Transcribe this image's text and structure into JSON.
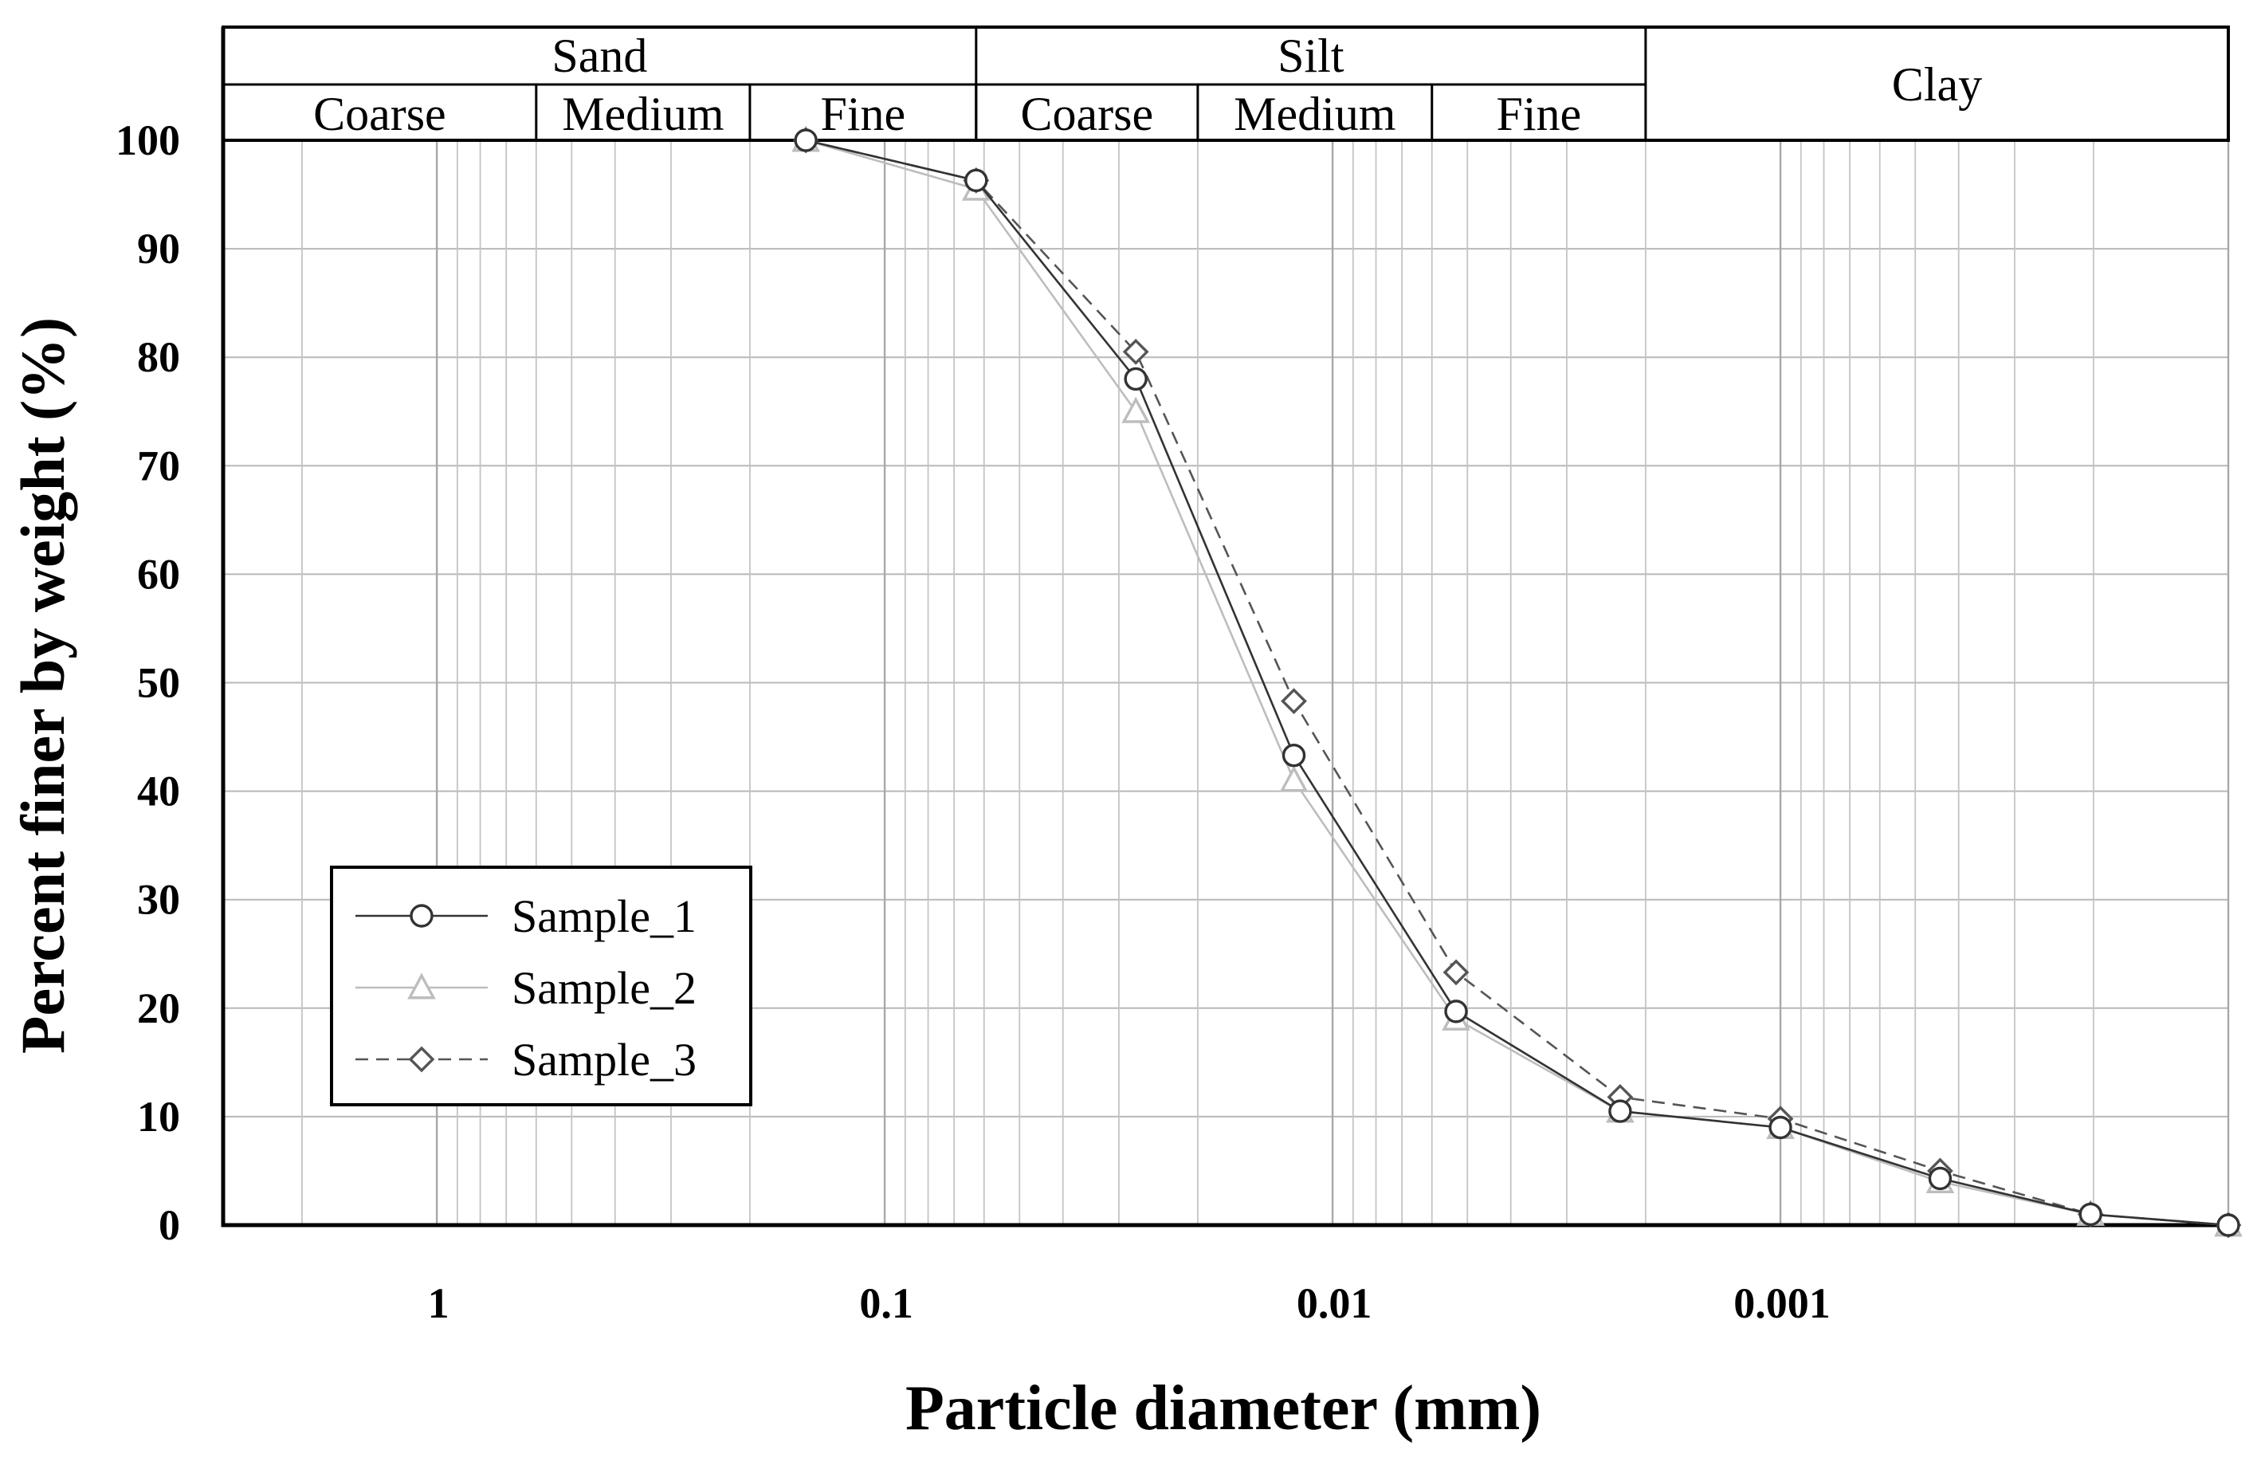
{
  "chart_data": {
    "type": "line",
    "xlabel": "Particle diameter (mm)",
    "ylabel": "Percent finer by weight (%)",
    "xscale": "log-reversed",
    "xlim": [
      3,
      0.0001
    ],
    "ylim": [
      0,
      100
    ],
    "yticks": [
      0,
      10,
      20,
      30,
      40,
      50,
      60,
      70,
      80,
      90,
      100
    ],
    "xticks": [
      {
        "value": 1,
        "label": "1"
      },
      {
        "value": 0.1,
        "label": "0.1"
      },
      {
        "value": 0.01,
        "label": "0.01"
      },
      {
        "value": 0.001,
        "label": "0.001"
      }
    ],
    "grid": true,
    "legend_position": "bottom-left",
    "classification": {
      "groups": [
        {
          "label": "Sand",
          "from": 3,
          "to": 0.0625
        },
        {
          "label": "Silt",
          "from": 0.0625,
          "to": 0.002
        },
        {
          "label": "Clay",
          "from": 0.002,
          "to": 0.0001
        }
      ],
      "subclasses": [
        {
          "label": "Coarse",
          "from": 3,
          "to": 0.6
        },
        {
          "label": "Medium",
          "from": 0.6,
          "to": 0.2
        },
        {
          "label": "Fine",
          "from": 0.2,
          "to": 0.0625
        },
        {
          "label": "Coarse",
          "from": 0.0625,
          "to": 0.02
        },
        {
          "label": "Medium",
          "from": 0.02,
          "to": 0.006
        },
        {
          "label": "Fine",
          "from": 0.006,
          "to": 0.002
        }
      ]
    },
    "series": [
      {
        "name": "Sample_1",
        "marker": "circle",
        "line": "solid",
        "color": "#333333",
        "points": [
          {
            "x": 0.15,
            "y": 100
          },
          {
            "x": 0.0625,
            "y": 96.3
          },
          {
            "x": 0.0275,
            "y": 78.0
          },
          {
            "x": 0.0122,
            "y": 43.3
          },
          {
            "x": 0.0053,
            "y": 19.7
          },
          {
            "x": 0.00228,
            "y": 10.5
          },
          {
            "x": 0.001,
            "y": 9.0
          },
          {
            "x": 0.00044,
            "y": 4.3
          },
          {
            "x": 0.000203,
            "y": 1.0
          },
          {
            "x": 0.0001,
            "y": 0
          }
        ]
      },
      {
        "name": "Sample_2",
        "marker": "triangle",
        "line": "solid",
        "color": "#bdbdbd",
        "points": [
          {
            "x": 0.15,
            "y": 100
          },
          {
            "x": 0.0625,
            "y": 95.5
          },
          {
            "x": 0.0275,
            "y": 75.0
          },
          {
            "x": 0.0122,
            "y": 41.0
          },
          {
            "x": 0.0053,
            "y": 19.0
          },
          {
            "x": 0.00228,
            "y": 10.5
          },
          {
            "x": 0.001,
            "y": 9.0
          },
          {
            "x": 0.00044,
            "y": 4.0
          },
          {
            "x": 0.000203,
            "y": 1.0
          },
          {
            "x": 0.0001,
            "y": 0
          }
        ]
      },
      {
        "name": "Sample_3",
        "marker": "diamond",
        "line": "dashed",
        "color": "#555555",
        "points": [
          {
            "x": 0.15,
            "y": 100
          },
          {
            "x": 0.0625,
            "y": 96.3
          },
          {
            "x": 0.0275,
            "y": 80.5
          },
          {
            "x": 0.0122,
            "y": 48.3
          },
          {
            "x": 0.0053,
            "y": 23.3
          },
          {
            "x": 0.00228,
            "y": 11.8
          },
          {
            "x": 0.001,
            "y": 9.8
          },
          {
            "x": 0.00044,
            "y": 5.0
          },
          {
            "x": 0.000203,
            "y": 1.0
          },
          {
            "x": 0.0001,
            "y": 0
          }
        ]
      }
    ]
  }
}
